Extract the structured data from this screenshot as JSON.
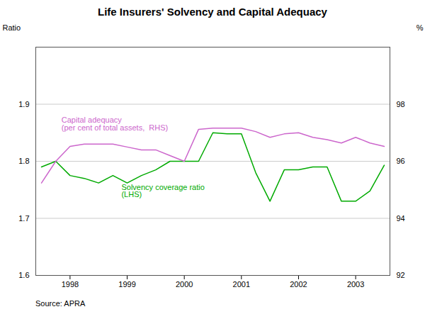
{
  "chart_data": {
    "type": "line",
    "title": "Life Insurers' Solvency and Capital Adequacy",
    "ylabel": "Ratio",
    "y2label": "%",
    "source": "Source: APRA",
    "x": [
      1997.5,
      1997.75,
      1998.0,
      1998.25,
      1998.5,
      1998.75,
      1999.0,
      1999.25,
      1999.5,
      1999.75,
      2000.0,
      2000.25,
      2000.5,
      2000.75,
      2001.0,
      2001.25,
      2001.5,
      2001.75,
      2002.0,
      2002.25,
      2002.5,
      2002.75,
      2003.0,
      2003.25,
      2003.5
    ],
    "series": [
      {
        "color": "#00aa00",
        "values": [
          1.79,
          1.8,
          1.775,
          1.77,
          1.762,
          1.775,
          1.762,
          1.775,
          1.785,
          1.8,
          1.8,
          1.8,
          1.85,
          1.848,
          1.848,
          1.78,
          1.73,
          1.785,
          1.785,
          1.79,
          1.79,
          1.73,
          1.73,
          1.748,
          1.793
        ]
      },
      {
        "color": "#cc66cc",
        "axis": "y2",
        "values": [
          95.24,
          96,
          96.52,
          96.6,
          96.6,
          96.6,
          96.5,
          96.4,
          96.4,
          96.2,
          96,
          97.12,
          97.16,
          97.16,
          97.16,
          97.04,
          96.84,
          96.96,
          97,
          96.84,
          96.76,
          96.64,
          96.84,
          96.64,
          96.52
        ]
      }
    ],
    "annotations": [
      {
        "text": "Capital adequacy\n(per cent of total assets,  RHS)",
        "color": "#cc66cc"
      },
      {
        "text": "Solvency coverage ratio\n(LHS)",
        "color": "#00aa00"
      }
    ],
    "xlim": [
      1997.4,
      2003.6
    ],
    "xticks": [
      1998,
      1999,
      2000,
      2001,
      2002,
      2003
    ],
    "ylim": [
      1.6,
      2.0
    ],
    "yticks": [
      1.6,
      1.7,
      1.8,
      1.9
    ],
    "y2lim": [
      92,
      100
    ],
    "y2ticks": [
      92,
      94,
      96,
      98
    ],
    "grid": "y"
  }
}
